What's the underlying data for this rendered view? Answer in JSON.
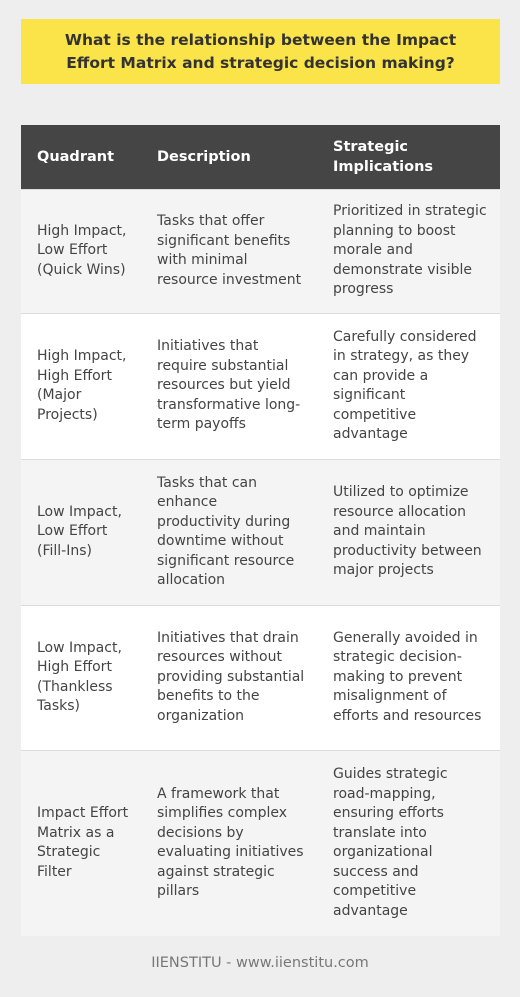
{
  "title": "What is the relationship between the Impact Effort Matrix and strategic decision making?",
  "table": {
    "headers": [
      "Quadrant",
      "Description",
      "Strategic Implications"
    ],
    "rows": [
      {
        "quadrant": "High Impact, Low Effort (Quick Wins)",
        "description": "Tasks that offer significant benefits with minimal resource investment",
        "implications": "Prioritized in strategic planning to boost morale and demonstrate visible progress"
      },
      {
        "quadrant": "High Impact, High Effort (Major Projects)",
        "description": "Initiatives that require substantial resources but yield transformative long-term payoffs",
        "implications": "Carefully considered in strategy, as they can provide a significant competitive advantage"
      },
      {
        "quadrant": "Low Impact, Low Effort (Fill-Ins)",
        "description": "Tasks that can enhance productivity during downtime without significant resource allocation",
        "implications": "Utilized to optimize resource allocation and maintain productivity between major projects"
      },
      {
        "quadrant": "Low Impact, High Effort (Thankless Tasks)",
        "description": "Initiatives that drain resources without providing substantial benefits to the organization",
        "implications": "Generally avoided in strategic decision-making to prevent misalignment of efforts and resources"
      },
      {
        "quadrant": "Impact Effort Matrix as a Strategic Filter",
        "description": "A framework that simplifies complex decisions by evaluating initiatives against strategic pillars",
        "implications": "Guides strategic road-mapping, ensuring efforts translate into organizational success and competitive advantage"
      }
    ]
  },
  "footer": "IIENSTITU - www.iienstitu.com",
  "colors": {
    "background": "#eeeeee",
    "title_bg": "#fbe34a",
    "header_bg": "#454545"
  }
}
